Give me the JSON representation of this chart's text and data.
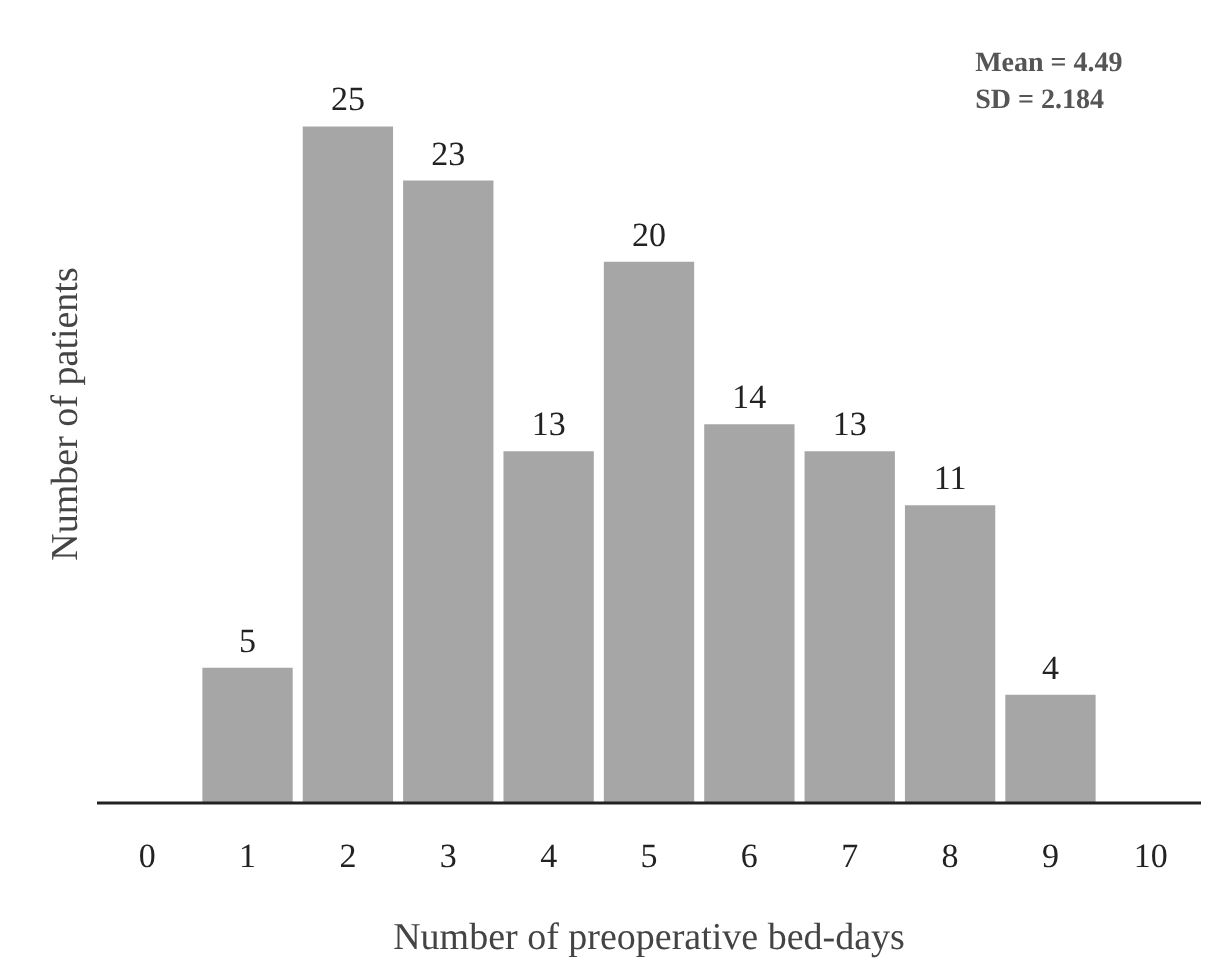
{
  "chart_data": {
    "type": "bar",
    "xlabel": "Number of preoperative bed-days",
    "ylabel": "Number of patients",
    "categories": [
      "0",
      "1",
      "2",
      "3",
      "4",
      "5",
      "6",
      "7",
      "8",
      "9",
      "10"
    ],
    "values": [
      null,
      5,
      25,
      23,
      13,
      20,
      14,
      13,
      11,
      4,
      null
    ],
    "color": "#a6a6a6",
    "data_labels": true,
    "grid": false,
    "annotations": [
      "Mean = 4.49",
      "SD = 2.184"
    ]
  }
}
